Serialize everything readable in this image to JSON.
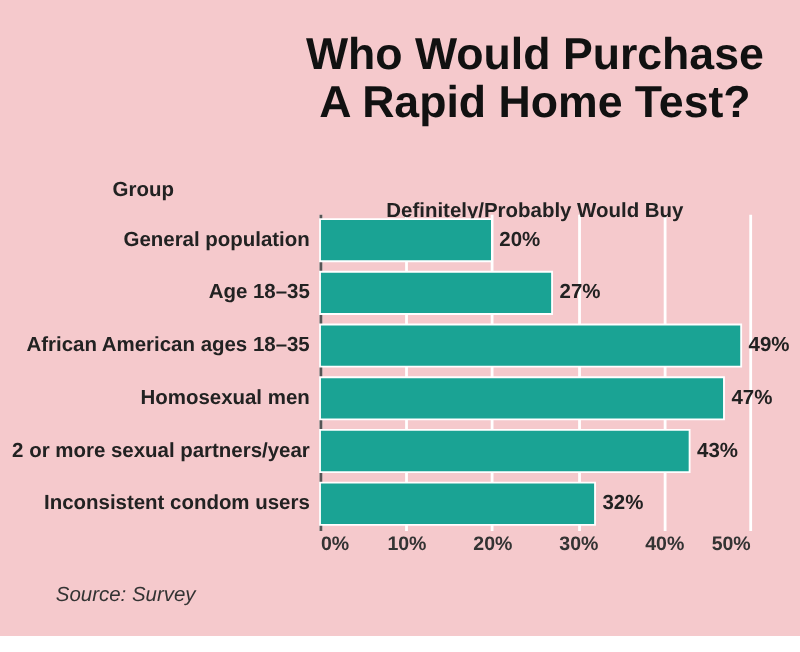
{
  "chart_data": {
    "type": "bar",
    "orientation": "horizontal",
    "title": "Who Would Purchase\nA Rapid Home Test?",
    "xlabel": "Definitely/Probably Would Buy",
    "ylabel": "Group",
    "categories": [
      "General population",
      "Age 18–35",
      "African American ages 18–35",
      "Homosexual men",
      "2 or more sexual partners/year",
      "Inconsistent condom users"
    ],
    "values": [
      20,
      27,
      49,
      47,
      43,
      32
    ],
    "value_labels": [
      "20%",
      "27%",
      "49%",
      "47%",
      "43%",
      "32%"
    ],
    "color": "#1aa394",
    "xlim": [
      0,
      50
    ],
    "xticks": [
      {
        "value": 0,
        "label": "0%"
      },
      {
        "value": 10,
        "label": "10%"
      },
      {
        "value": 20,
        "label": "20%"
      },
      {
        "value": 30,
        "label": "30%"
      },
      {
        "value": 40,
        "label": "40%"
      },
      {
        "value": 50,
        "label": "50%"
      }
    ],
    "grid": "x",
    "annotations": [
      "Source: Survey"
    ]
  }
}
